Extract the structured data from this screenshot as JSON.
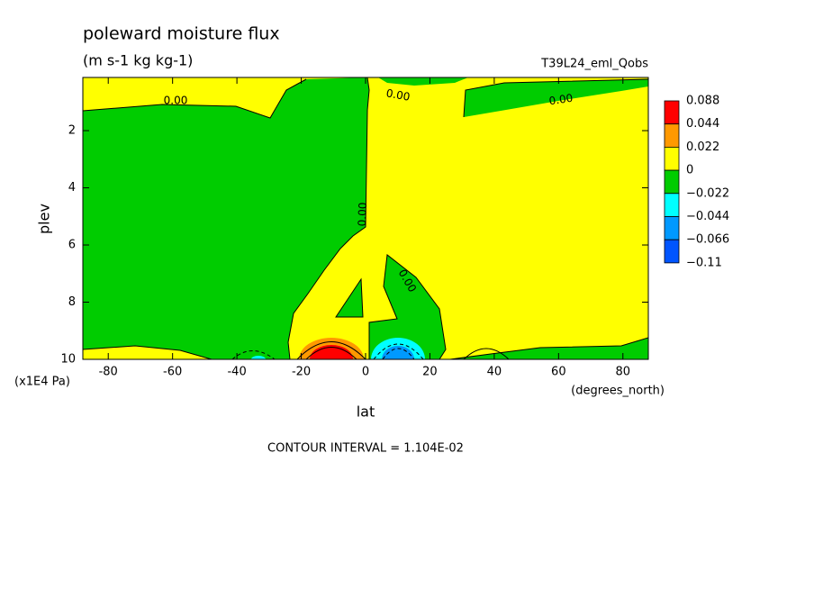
{
  "chart_data": {
    "type": "contour",
    "title": "poleward moisture flux",
    "subtitle": "(m s-1 kg kg-1)",
    "run_label": "T39L24_eml_Qobs",
    "x_label": "lat",
    "x_units": "(degrees_north)",
    "y_label": "plev",
    "y_units": "(x1E4 Pa)",
    "footnote": "CONTOUR INTERVAL = 1.104E-02",
    "xlim": [
      -87.9,
      87.9
    ],
    "xticks": [
      -80,
      -60,
      -40,
      -20,
      0,
      20,
      40,
      60,
      80
    ],
    "ylim": [
      0.14,
      10
    ],
    "yticks": [
      2,
      4,
      6,
      8,
      10
    ],
    "contour_labels": [
      "0.00",
      "0.00",
      "0.00",
      "0.00",
      "0.00"
    ],
    "colorbar": {
      "levels": [
        0.088,
        0.044,
        0.022,
        0,
        {
          "value": -0.022,
          "label": "−0.022"
        },
        {
          "value": -0.044,
          "label": "−0.044"
        },
        {
          "value": -0.066,
          "label": "−0.066"
        },
        {
          "value": -0.11,
          "label": "−0.11"
        }
      ],
      "colors": [
        "#ff0000",
        "#ff9900",
        "#ffff00",
        "#00cc00",
        "#00ffff",
        "#0099ff",
        "#0055ff"
      ]
    }
  }
}
